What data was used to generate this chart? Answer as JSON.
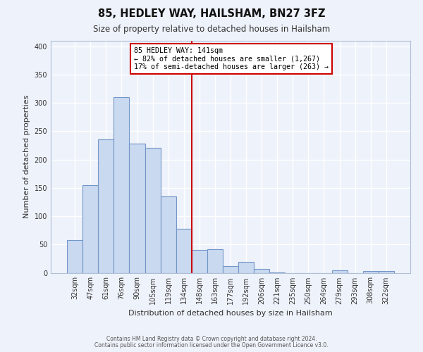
{
  "title": "85, HEDLEY WAY, HAILSHAM, BN27 3FZ",
  "subtitle": "Size of property relative to detached houses in Hailsham",
  "xlabel": "Distribution of detached houses by size in Hailsham",
  "ylabel": "Number of detached properties",
  "bar_labels": [
    "32sqm",
    "47sqm",
    "61sqm",
    "76sqm",
    "90sqm",
    "105sqm",
    "119sqm",
    "134sqm",
    "148sqm",
    "163sqm",
    "177sqm",
    "192sqm",
    "206sqm",
    "221sqm",
    "235sqm",
    "250sqm",
    "264sqm",
    "279sqm",
    "293sqm",
    "308sqm",
    "322sqm"
  ],
  "bar_values": [
    58,
    155,
    235,
    310,
    228,
    221,
    135,
    78,
    41,
    42,
    12,
    19,
    7,
    1,
    0,
    0,
    0,
    4,
    0,
    3,
    3
  ],
  "bar_color": "#c9d9f0",
  "bar_edge_color": "#7396c8",
  "background_color": "#eef2fa",
  "grid_color": "#ffffff",
  "annotation_text_line1": "85 HEDLEY WAY: 141sqm",
  "annotation_text_line2": "← 82% of detached houses are smaller (1,267)",
  "annotation_text_line3": "17% of semi-detached houses are larger (263) →",
  "annotation_box_color": "#ffffff",
  "annotation_box_edge": "#cc0000",
  "vline_color": "#cc0000",
  "ylim": [
    0,
    410
  ],
  "footnote1": "Contains HM Land Registry data © Crown copyright and database right 2024.",
  "footnote2": "Contains public sector information licensed under the Open Government Licence v3.0."
}
